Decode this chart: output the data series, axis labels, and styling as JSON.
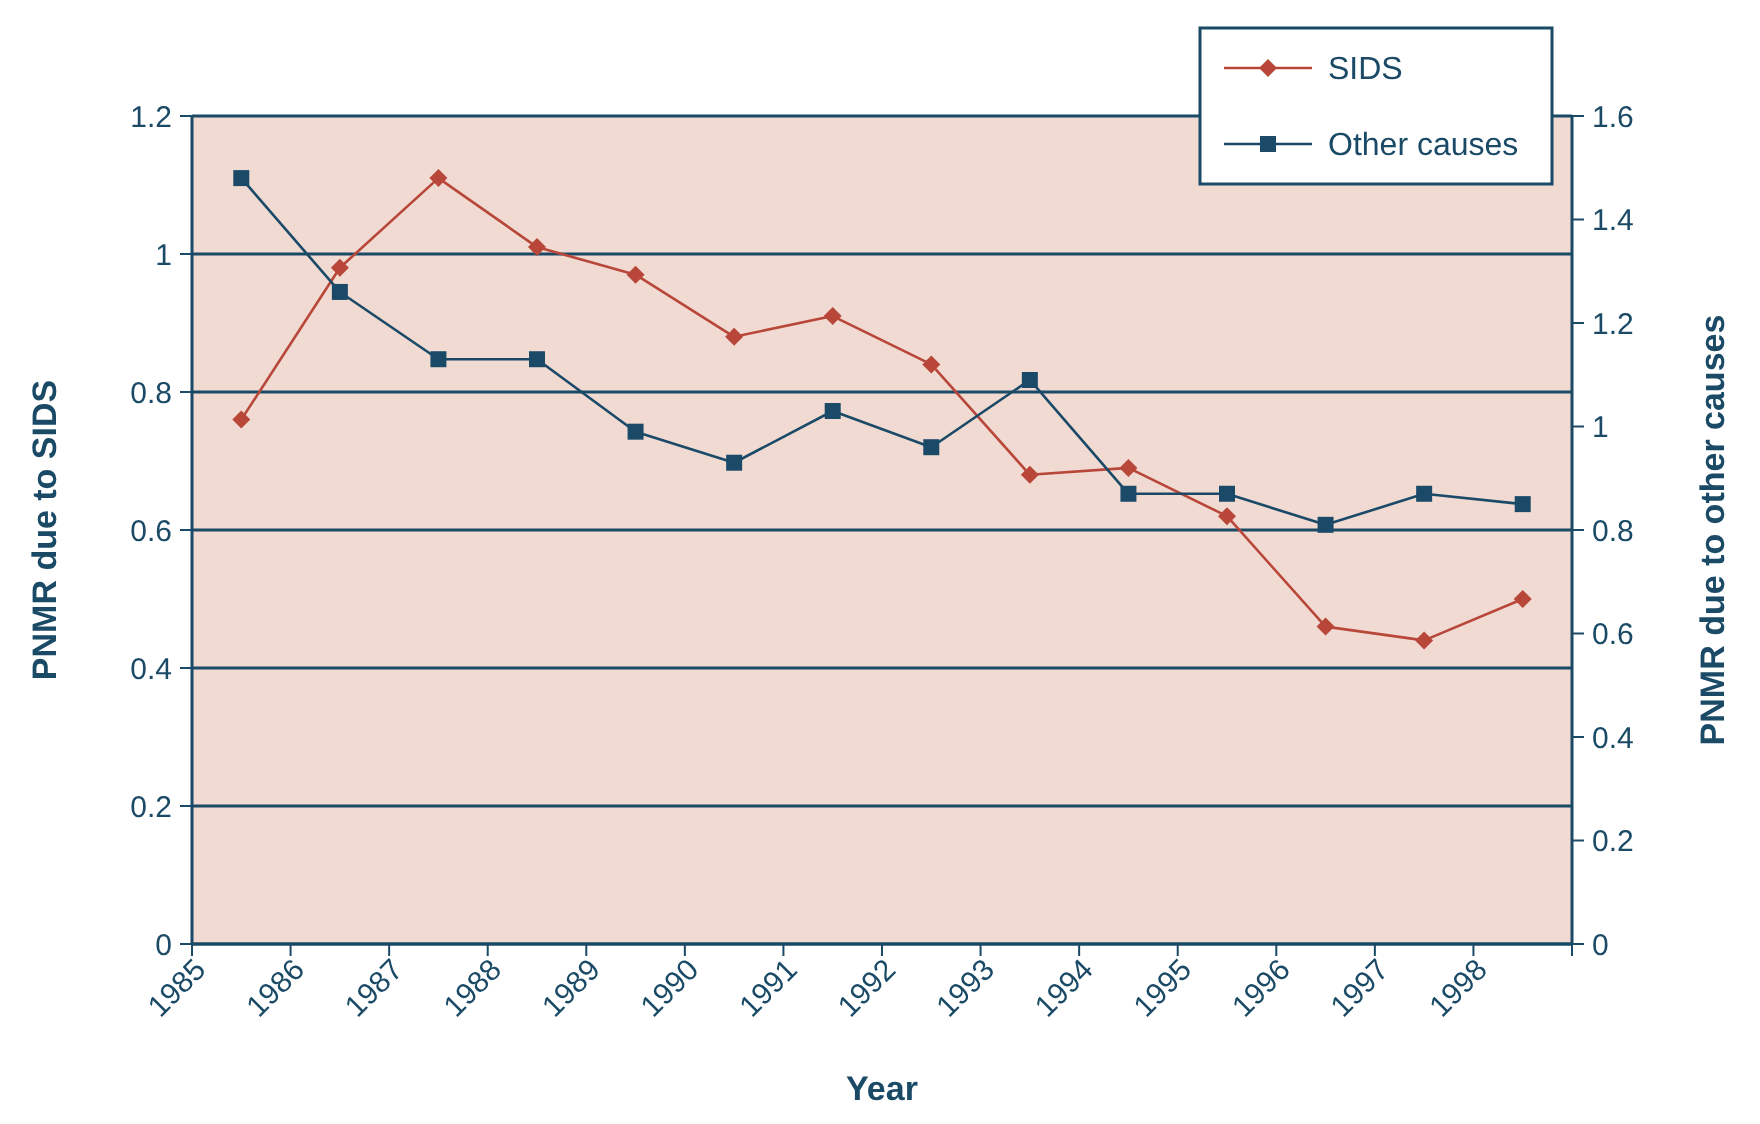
{
  "chart_data": {
    "type": "line",
    "xlabel": "Year",
    "ylabel": "PNMR due to SIDS",
    "y2label": "PNMR due to other causes",
    "x": [
      1985.5,
      1986.5,
      1987.5,
      1988.5,
      1989.5,
      1990.5,
      1991.5,
      1992.5,
      1993.5,
      1994.5,
      1995.5,
      1996.5,
      1997.5,
      1998.5
    ],
    "xlim": [
      1985,
      1999
    ],
    "xticks": [
      1985,
      1986,
      1987,
      1988,
      1989,
      1990,
      1991,
      1992,
      1993,
      1994,
      1995,
      1996,
      1997,
      1998,
      {
        "value": 1999,
        "label": null
      }
    ],
    "ylim": [
      0,
      1.2
    ],
    "yticks": [
      0,
      0.2,
      0.4,
      0.6,
      0.8,
      1,
      1.2
    ],
    "y2lim": [
      0,
      1.6
    ],
    "y2ticks": [
      0,
      0.2,
      0.4,
      0.6,
      0.8,
      1,
      1.2,
      1.4,
      1.6
    ],
    "series": [
      {
        "name": "SIDS",
        "color": "#b8473a",
        "marker": "diamond",
        "values": [
          0.76,
          0.98,
          1.11,
          1.01,
          0.97,
          0.88,
          0.91,
          0.84,
          0.68,
          0.69,
          0.62,
          0.46,
          0.44,
          0.5
        ]
      },
      {
        "name": "Other causes",
        "color": "#1b4a68",
        "marker": "square",
        "axis": "y2",
        "values": [
          1.48,
          1.26,
          1.13,
          1.13,
          0.99,
          0.93,
          1.03,
          0.96,
          1.09,
          0.87,
          0.87,
          0.81,
          0.87,
          0.85
        ]
      }
    ],
    "grid": "y",
    "legend": "top right",
    "line_style": "solid"
  }
}
